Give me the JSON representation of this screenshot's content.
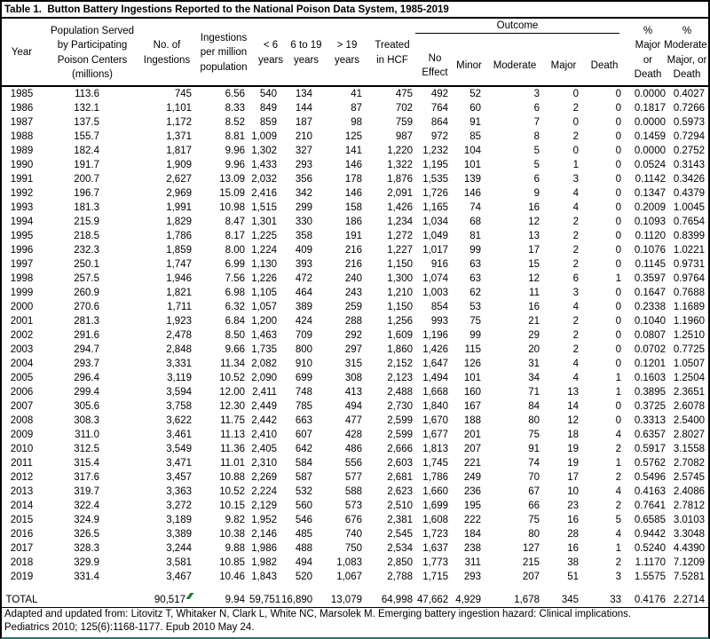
{
  "title": "Table 1.  Button Battery Ingestions Reported to the National Poison Data System, 1985-2019",
  "table": {
    "header": {
      "year": "Year",
      "population": "Population Served\nby Participating\nPoison Centers\n(millions)",
      "ingestions": "No. of\nIngestions",
      "per_million": "Ingestions\nper million\npopulation",
      "under6": "< 6\nyears",
      "age6to19": "6 to 19\nyears",
      "over19": "> 19\nyears",
      "treated_hcf": "Treated\nin HCF",
      "outcome_group": "Outcome",
      "no_effect": "No\nEffect",
      "minor": "Minor",
      "moderate": "Moderate",
      "major": "Major",
      "death": "Death",
      "pct_major_death": "%\nMajor\nor\nDeath",
      "pct_moderate_major_death": "%\nModerate,\nMajor, or\nDeath"
    },
    "rows": [
      [
        "1985",
        "113.6",
        "745",
        "6.56",
        "540",
        "134",
        "41",
        "475",
        "492",
        "52",
        "3",
        "0",
        "0",
        "0.0000",
        "0.4027"
      ],
      [
        "1986",
        "132.1",
        "1,101",
        "8.33",
        "849",
        "144",
        "87",
        "702",
        "764",
        "60",
        "6",
        "2",
        "0",
        "0.1817",
        "0.7266"
      ],
      [
        "1987",
        "137.5",
        "1,172",
        "8.52",
        "859",
        "187",
        "98",
        "759",
        "864",
        "91",
        "7",
        "0",
        "0",
        "0.0000",
        "0.5973"
      ],
      [
        "1988",
        "155.7",
        "1,371",
        "8.81",
        "1,009",
        "210",
        "125",
        "987",
        "972",
        "85",
        "8",
        "2",
        "0",
        "0.1459",
        "0.7294"
      ],
      [
        "1989",
        "182.4",
        "1,817",
        "9.96",
        "1,302",
        "327",
        "141",
        "1,220",
        "1,232",
        "104",
        "5",
        "0",
        "0",
        "0.0000",
        "0.2752"
      ],
      [
        "1990",
        "191.7",
        "1,909",
        "9.96",
        "1,433",
        "293",
        "146",
        "1,322",
        "1,195",
        "101",
        "5",
        "1",
        "0",
        "0.0524",
        "0.3143"
      ],
      [
        "1991",
        "200.7",
        "2,627",
        "13.09",
        "2,032",
        "356",
        "178",
        "1,876",
        "1,535",
        "139",
        "6",
        "3",
        "0",
        "0.1142",
        "0.3426"
      ],
      [
        "1992",
        "196.7",
        "2,969",
        "15.09",
        "2,416",
        "342",
        "146",
        "2,091",
        "1,726",
        "146",
        "9",
        "4",
        "0",
        "0.1347",
        "0.4379"
      ],
      [
        "1993",
        "181.3",
        "1,991",
        "10.98",
        "1,515",
        "299",
        "158",
        "1,426",
        "1,165",
        "74",
        "16",
        "4",
        "0",
        "0.2009",
        "1.0045"
      ],
      [
        "1994",
        "215.9",
        "1,829",
        "8.47",
        "1,301",
        "330",
        "186",
        "1,234",
        "1,034",
        "68",
        "12",
        "2",
        "0",
        "0.1093",
        "0.7654"
      ],
      [
        "1995",
        "218.5",
        "1,786",
        "8.17",
        "1,225",
        "358",
        "191",
        "1,272",
        "1,049",
        "81",
        "13",
        "2",
        "0",
        "0.1120",
        "0.8399"
      ],
      [
        "1996",
        "232.3",
        "1,859",
        "8.00",
        "1,224",
        "409",
        "216",
        "1,227",
        "1,017",
        "99",
        "17",
        "2",
        "0",
        "0.1076",
        "1.0221"
      ],
      [
        "1997",
        "250.1",
        "1,747",
        "6.99",
        "1,130",
        "393",
        "216",
        "1,150",
        "916",
        "63",
        "15",
        "2",
        "0",
        "0.1145",
        "0.9731"
      ],
      [
        "1998",
        "257.5",
        "1,946",
        "7.56",
        "1,226",
        "472",
        "240",
        "1,300",
        "1,074",
        "63",
        "12",
        "6",
        "1",
        "0.3597",
        "0.9764"
      ],
      [
        "1999",
        "260.9",
        "1,821",
        "6.98",
        "1,105",
        "464",
        "243",
        "1,210",
        "1,003",
        "62",
        "11",
        "3",
        "0",
        "0.1647",
        "0.7688"
      ],
      [
        "2000",
        "270.6",
        "1,711",
        "6.32",
        "1,057",
        "389",
        "259",
        "1,150",
        "854",
        "53",
        "16",
        "4",
        "0",
        "0.2338",
        "1.1689"
      ],
      [
        "2001",
        "281.3",
        "1,923",
        "6.84",
        "1,200",
        "424",
        "288",
        "1,256",
        "993",
        "75",
        "21",
        "2",
        "0",
        "0.1040",
        "1.1960"
      ],
      [
        "2002",
        "291.6",
        "2,478",
        "8.50",
        "1,463",
        "709",
        "292",
        "1,609",
        "1,196",
        "99",
        "29",
        "2",
        "0",
        "0.0807",
        "1.2510"
      ],
      [
        "2003",
        "294.7",
        "2,848",
        "9.66",
        "1,735",
        "800",
        "297",
        "1,860",
        "1,426",
        "115",
        "20",
        "2",
        "0",
        "0.0702",
        "0.7725"
      ],
      [
        "2004",
        "293.7",
        "3,331",
        "11.34",
        "2,082",
        "910",
        "315",
        "2,152",
        "1,647",
        "126",
        "31",
        "4",
        "0",
        "0.1201",
        "1.0507"
      ],
      [
        "2005",
        "296.4",
        "3,119",
        "10.52",
        "2,090",
        "699",
        "308",
        "2,123",
        "1,494",
        "101",
        "34",
        "4",
        "1",
        "0.1603",
        "1.2504"
      ],
      [
        "2006",
        "299.4",
        "3,594",
        "12.00",
        "2,411",
        "748",
        "413",
        "2,488",
        "1,668",
        "160",
        "71",
        "13",
        "1",
        "0.3895",
        "2.3651"
      ],
      [
        "2007",
        "305.6",
        "3,758",
        "12.30",
        "2,449",
        "785",
        "494",
        "2,730",
        "1,840",
        "167",
        "84",
        "14",
        "0",
        "0.3725",
        "2.6078"
      ],
      [
        "2008",
        "308.3",
        "3,622",
        "11.75",
        "2,442",
        "663",
        "477",
        "2,599",
        "1,670",
        "188",
        "80",
        "12",
        "0",
        "0.3313",
        "2.5400"
      ],
      [
        "2009",
        "311.0",
        "3,461",
        "11.13",
        "2,410",
        "607",
        "428",
        "2,599",
        "1,677",
        "201",
        "75",
        "18",
        "4",
        "0.6357",
        "2.8027"
      ],
      [
        "2010",
        "312.5",
        "3,549",
        "11.36",
        "2,405",
        "642",
        "486",
        "2,666",
        "1,813",
        "207",
        "91",
        "19",
        "2",
        "0.5917",
        "3.1558"
      ],
      [
        "2011",
        "315.4",
        "3,471",
        "11.01",
        "2,310",
        "584",
        "556",
        "2,603",
        "1,745",
        "221",
        "74",
        "19",
        "1",
        "0.5762",
        "2.7082"
      ],
      [
        "2012",
        "317.6",
        "3,457",
        "10.88",
        "2,269",
        "587",
        "577",
        "2,681",
        "1,786",
        "249",
        "70",
        "17",
        "2",
        "0.5496",
        "2.5745"
      ],
      [
        "2013",
        "319.7",
        "3,363",
        "10.52",
        "2,224",
        "532",
        "588",
        "2,623",
        "1,660",
        "236",
        "67",
        "10",
        "4",
        "0.4163",
        "2.4086"
      ],
      [
        "2014",
        "322.4",
        "3,272",
        "10.15",
        "2,129",
        "560",
        "573",
        "2,510",
        "1,699",
        "195",
        "66",
        "23",
        "2",
        "0.7641",
        "2.7812"
      ],
      [
        "2015",
        "324.9",
        "3,189",
        "9.82",
        "1,952",
        "546",
        "676",
        "2,381",
        "1,608",
        "222",
        "75",
        "16",
        "5",
        "0.6585",
        "3.0103"
      ],
      [
        "2016",
        "326.5",
        "3,389",
        "10.38",
        "2,146",
        "485",
        "740",
        "2,545",
        "1,723",
        "184",
        "80",
        "28",
        "4",
        "0.9442",
        "3.3048"
      ],
      [
        "2017",
        "328.3",
        "3,244",
        "9.88",
        "1,986",
        "488",
        "750",
        "2,534",
        "1,637",
        "238",
        "127",
        "16",
        "1",
        "0.5240",
        "4.4390"
      ],
      [
        "2018",
        "329.9",
        "3,581",
        "10.85",
        "1,982",
        "494",
        "1,083",
        "2,850",
        "1,773",
        "311",
        "215",
        "38",
        "2",
        "1.1170",
        "7.1209"
      ],
      [
        "2019",
        "331.4",
        "3,467",
        "10.46",
        "1,843",
        "520",
        "1,067",
        "2,788",
        "1,715",
        "293",
        "207",
        "51",
        "3",
        "1.5575",
        "7.5281"
      ]
    ],
    "total_row": [
      "TOTAL",
      "",
      "90,517",
      "9.94",
      "59,751",
      "16,890",
      "13,079",
      "64,998",
      "47,662",
      "4,929",
      "1,678",
      "345",
      "33",
      "0.4176",
      "2.2714"
    ],
    "total_marker_color": "#1e7d2c"
  },
  "footer": {
    "line1": "Adapted and updated from: Litovitz T, Whitaker N, Clark L, White NC, Marsolek M. Emerging battery ingestion hazard: Clinical implications.",
    "line2": "Pediatrics 2010; 125(6):1168-1177. Epub 2010 May 24."
  }
}
